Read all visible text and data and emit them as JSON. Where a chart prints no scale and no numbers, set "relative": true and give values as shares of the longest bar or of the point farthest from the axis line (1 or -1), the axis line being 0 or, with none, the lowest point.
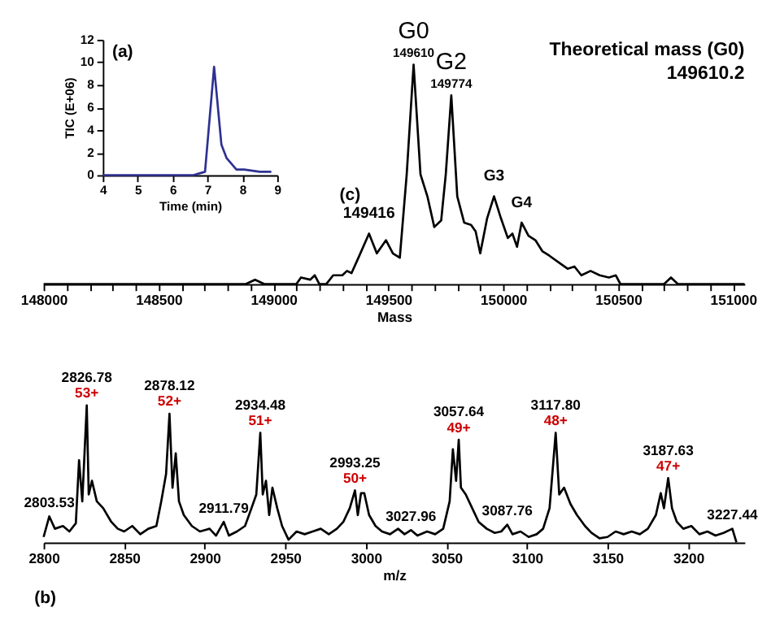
{
  "chart_data": [
    {
      "type": "line",
      "title": "(a)",
      "xlabel": "Time (min)",
      "ylabel": "TIC (E+06)",
      "grid": false,
      "line_style": "solid",
      "x": [
        4,
        6.6,
        6.71,
        6.93,
        7.19,
        7.4,
        7.55,
        7.83,
        8.05,
        8.5,
        8.83
      ],
      "series": [
        {
          "color": "#2e3192",
          "values": [
            0,
            0,
            0.1,
            0.3,
            9.6,
            2.7,
            1.5,
            0.5,
            0.5,
            0.3,
            0.3
          ]
        }
      ],
      "xlim": [
        4,
        9
      ],
      "xticks": [
        4,
        5,
        6,
        7,
        8,
        9
      ],
      "ylim": [
        0,
        12
      ],
      "yticks": [
        0,
        2,
        4,
        6,
        8,
        10,
        12
      ]
    },
    {
      "type": "line",
      "title": "(c)",
      "xlabel": "Mass",
      "relative": true,
      "grid": false,
      "tick_labels": "x",
      "line_style": "solid",
      "x": [
        148000,
        148880,
        148920,
        148960,
        149000,
        149100,
        149120,
        149160,
        149180,
        149200,
        149230,
        149260,
        149300,
        149320,
        149340,
        149370,
        149416,
        149450,
        149490,
        149520,
        149550,
        149580,
        149610,
        149640,
        149670,
        149700,
        149730,
        149750,
        149774,
        149800,
        149830,
        149860,
        149880,
        149900,
        149930,
        149960,
        149990,
        150020,
        150040,
        150060,
        150080,
        150110,
        150140,
        150170,
        150200,
        150240,
        150280,
        150310,
        150340,
        150380,
        150420,
        150460,
        150490,
        150510,
        150700,
        150730,
        150760,
        151050
      ],
      "series": [
        {
          "color": "#000000",
          "values": [
            0,
            0,
            0.02,
            0,
            0,
            0,
            0.03,
            0.02,
            0.04,
            0,
            0,
            0.04,
            0.04,
            0.06,
            0.05,
            0.12,
            0.23,
            0.14,
            0.2,
            0.14,
            0.12,
            0.5,
            1.0,
            0.5,
            0.4,
            0.26,
            0.29,
            0.5,
            0.86,
            0.4,
            0.28,
            0.27,
            0.24,
            0.14,
            0.3,
            0.4,
            0.3,
            0.21,
            0.23,
            0.17,
            0.28,
            0.22,
            0.2,
            0.15,
            0.13,
            0.1,
            0.07,
            0.08,
            0.04,
            0.06,
            0.04,
            0.03,
            0.04,
            0,
            0,
            0.03,
            0,
            0
          ]
        }
      ],
      "xlim": [
        148000,
        151050
      ],
      "xticks": [
        148000,
        {
          "value": 148100,
          "label": null
        },
        {
          "value": 148200,
          "label": null
        },
        {
          "value": 148300,
          "label": null
        },
        {
          "value": 148400,
          "label": null
        },
        148500,
        {
          "value": 148600,
          "label": null
        },
        {
          "value": 148700,
          "label": null
        },
        {
          "value": 148800,
          "label": null
        },
        {
          "value": 148900,
          "label": null
        },
        149000,
        {
          "value": 149100,
          "label": null
        },
        {
          "value": 149200,
          "label": null
        },
        {
          "value": 149300,
          "label": null
        },
        {
          "value": 149400,
          "label": null
        },
        149500,
        {
          "value": 149600,
          "label": null
        },
        {
          "value": 149700,
          "label": null
        },
        {
          "value": 149800,
          "label": null
        },
        {
          "value": 149900,
          "label": null
        },
        150000,
        {
          "value": 150100,
          "label": null
        },
        {
          "value": 150200,
          "label": null
        },
        {
          "value": 150300,
          "label": null
        },
        {
          "value": 150400,
          "label": null
        },
        150500,
        {
          "value": 150600,
          "label": null
        },
        {
          "value": 150700,
          "label": null
        },
        {
          "value": 150800,
          "label": null
        },
        {
          "value": 150900,
          "label": null
        },
        151000
      ],
      "annotations": [
        "Theoretical mass (G0)",
        "149610.2",
        {
          "text": "G0",
          "x": 149610,
          "y": 1.0
        },
        {
          "text": "149610",
          "x": 149610,
          "y": 1.0
        },
        {
          "text": "G2",
          "x": 149774,
          "y": 0.86
        },
        {
          "text": "149774",
          "x": 149774,
          "y": 0.86
        },
        {
          "text": "149416",
          "x": 149416,
          "y": 0.23
        },
        {
          "text": "G3",
          "x": 149960,
          "y": 0.4
        },
        {
          "text": "G4",
          "x": 150080,
          "y": 0.28
        }
      ]
    },
    {
      "type": "line",
      "title": "(b)",
      "xlabel": "m/z",
      "relative": true,
      "grid": false,
      "tick_labels": "x",
      "line_style": "solid",
      "x": [
        2800,
        2803.53,
        2807,
        2812,
        2816,
        2820,
        2822,
        2824,
        2826.78,
        2828,
        2830,
        2833,
        2837,
        2842,
        2846,
        2850,
        2855,
        2860,
        2865,
        2870,
        2873,
        2876,
        2878.12,
        2880,
        2882,
        2884,
        2887,
        2892,
        2897,
        2903,
        2907,
        2911.79,
        2915,
        2920,
        2925,
        2929,
        2932,
        2934.48,
        2936,
        2938,
        2940,
        2942,
        2945,
        2948,
        2952,
        2957,
        2962,
        2967,
        2972,
        2977,
        2982,
        2986,
        2990,
        2993.25,
        2995,
        2997,
        2999,
        3002,
        3006,
        3010,
        3015,
        3020,
        3024,
        3027.96,
        3032,
        3038,
        3043,
        3048,
        3052,
        3054,
        3056,
        3057.64,
        3059,
        3062,
        3066,
        3070,
        3075,
        3080,
        3084,
        3087.76,
        3091,
        3096,
        3101,
        3106,
        3110,
        3114,
        3117.8,
        3120,
        3123,
        3127,
        3131,
        3136,
        3140,
        3145,
        3150,
        3155,
        3160,
        3165,
        3170,
        3175,
        3180,
        3183,
        3185,
        3187.63,
        3190,
        3193,
        3197,
        3202,
        3207,
        3212,
        3217,
        3222,
        3227.44,
        3230
      ],
      "series": [
        {
          "color": "#000000",
          "values": [
            0.04,
            0.19,
            0.1,
            0.12,
            0.08,
            0.14,
            0.6,
            0.3,
            1.0,
            0.35,
            0.45,
            0.3,
            0.25,
            0.15,
            0.1,
            0.08,
            0.12,
            0.06,
            0.1,
            0.12,
            0.3,
            0.5,
            0.94,
            0.4,
            0.65,
            0.3,
            0.2,
            0.12,
            0.08,
            0.1,
            0.05,
            0.15,
            0.05,
            0.08,
            0.12,
            0.25,
            0.35,
            0.8,
            0.35,
            0.45,
            0.2,
            0.4,
            0.25,
            0.12,
            0.02,
            0.08,
            0.06,
            0.08,
            0.1,
            0.06,
            0.1,
            0.15,
            0.25,
            0.38,
            0.2,
            0.36,
            0.36,
            0.2,
            0.12,
            0.08,
            0.06,
            0.1,
            0.06,
            0.09,
            0.05,
            0.08,
            0.06,
            0.1,
            0.3,
            0.68,
            0.45,
            0.75,
            0.4,
            0.35,
            0.25,
            0.15,
            0.1,
            0.07,
            0.08,
            0.13,
            0.06,
            0.08,
            0.04,
            0.06,
            0.1,
            0.25,
            0.8,
            0.35,
            0.4,
            0.28,
            0.2,
            0.12,
            0.07,
            0.03,
            0.04,
            0.08,
            0.06,
            0.08,
            0.06,
            0.1,
            0.2,
            0.36,
            0.25,
            0.47,
            0.25,
            0.15,
            0.1,
            0.12,
            0.06,
            0.08,
            0.05,
            0.07,
            0.1,
            0
          ]
        }
      ],
      "xlim": [
        2800,
        3235
      ],
      "xticks": [
        2800,
        2850,
        2900,
        2950,
        3000,
        3050,
        3100,
        3150,
        3200
      ],
      "annotations": [
        {
          "text": "2803.53",
          "x": 2803.53,
          "y": 0.19
        },
        {
          "text": "2826.78",
          "x": 2826.78,
          "y": 1.0
        },
        {
          "text": "53+",
          "x": 2826.78,
          "y": 1.0
        },
        {
          "text": "2878.12",
          "x": 2878.12,
          "y": 0.94
        },
        {
          "text": "52+",
          "x": 2878.12,
          "y": 0.94
        },
        {
          "text": "2911.79",
          "x": 2911.79,
          "y": 0.15
        },
        {
          "text": "2934.48",
          "x": 2934.48,
          "y": 0.8
        },
        {
          "text": "51+",
          "x": 2934.48,
          "y": 0.8
        },
        {
          "text": "2993.25",
          "x": 2993.25,
          "y": 0.38
        },
        {
          "text": "50+",
          "x": 2993.25,
          "y": 0.38
        },
        {
          "text": "3027.96",
          "x": 3027.96,
          "y": 0.09
        },
        {
          "text": "3057.64",
          "x": 3057.64,
          "y": 0.75
        },
        {
          "text": "49+",
          "x": 3057.64,
          "y": 0.75
        },
        {
          "text": "3087.76",
          "x": 3087.76,
          "y": 0.13
        },
        {
          "text": "3117.80",
          "x": 3117.8,
          "y": 0.8
        },
        {
          "text": "48+",
          "x": 3117.8,
          "y": 0.8
        },
        {
          "text": "3187.63",
          "x": 3187.63,
          "y": 0.47
        },
        {
          "text": "47+",
          "x": 3187.63,
          "y": 0.47
        },
        {
          "text": "3227.44",
          "x": 3227.44,
          "y": 0.1
        }
      ]
    }
  ]
}
